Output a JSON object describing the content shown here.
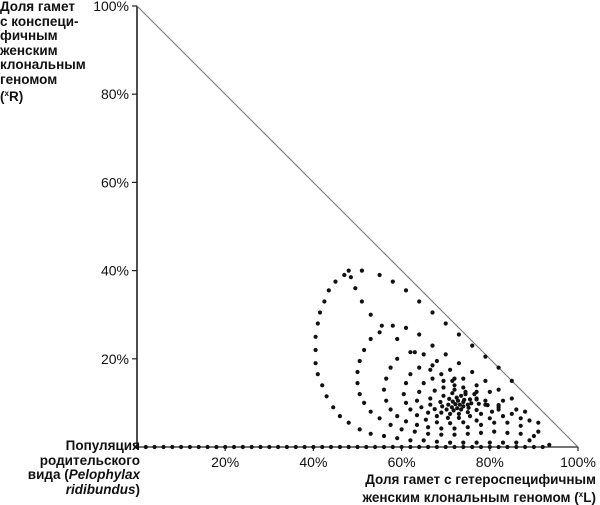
{
  "chart_data": {
    "type": "scatter",
    "y_title_lines": [
      "Доля гамет",
      "с конспеци-",
      "фичным",
      "женским",
      "клональным",
      "геномом"
    ],
    "y_title_symbol": {
      "open": "(",
      "sup": "x",
      "letter": "R",
      "close": ")"
    },
    "x_title_lines": [
      "Доля гамет с гетероспецифичным",
      "женским клональным геномом"
    ],
    "x_title_symbol": {
      "open": " (",
      "sup": "x",
      "letter": "L",
      "close": ")"
    },
    "origin_label": {
      "line1": "Популяция",
      "line2": "родительского",
      "line3_prefix": "вида (",
      "line3_italic": "Pelophylax",
      "line4_italic": "ridibundus",
      "line4_suffix": ")"
    },
    "x_ticks": [
      "20%",
      "40%",
      "60%",
      "80%",
      "100%"
    ],
    "x_tick_values": [
      20,
      40,
      60,
      80,
      100
    ],
    "y_ticks": [
      "20%",
      "40%",
      "60%",
      "80%",
      "100%"
    ],
    "y_tick_values": [
      20,
      40,
      60,
      80,
      100
    ],
    "xlim": [
      0,
      100
    ],
    "ylim": [
      0,
      100
    ],
    "boundary": "x + y = 100",
    "series": [
      {
        "points": [
          [
            0,
            0
          ],
          [
            2,
            0
          ],
          [
            4,
            0
          ],
          [
            6,
            0
          ],
          [
            8,
            0
          ],
          [
            10,
            0
          ],
          [
            12,
            0
          ],
          [
            14,
            0
          ],
          [
            16,
            0
          ],
          [
            18,
            0
          ],
          [
            20,
            0
          ],
          [
            22,
            0
          ],
          [
            24,
            0
          ],
          [
            26,
            0
          ],
          [
            28,
            0
          ],
          [
            30,
            0
          ],
          [
            32,
            0
          ],
          [
            34,
            0
          ],
          [
            36,
            0
          ],
          [
            38,
            0
          ],
          [
            40,
            0
          ],
          [
            42,
            0
          ],
          [
            44,
            0
          ],
          [
            46,
            0
          ],
          [
            48,
            0
          ],
          [
            50,
            0
          ],
          [
            52,
            0
          ],
          [
            54,
            0
          ],
          [
            56,
            0
          ],
          [
            58,
            0
          ],
          [
            60,
            0
          ],
          [
            62,
            0
          ],
          [
            64,
            0
          ],
          [
            66,
            0
          ],
          [
            68,
            0
          ],
          [
            70,
            0
          ],
          [
            72,
            0
          ],
          [
            74,
            0
          ],
          [
            76,
            0
          ],
          [
            78,
            0
          ],
          [
            80,
            0
          ],
          [
            82,
            0
          ],
          [
            84,
            0
          ],
          [
            86,
            0
          ],
          [
            88,
            0
          ],
          [
            90,
            0
          ],
          [
            92,
            0
          ],
          [
            93.5,
            0.5
          ],
          [
            91,
            3.5
          ],
          [
            87,
            6.5
          ],
          [
            82,
            9.5
          ],
          [
            77,
            12.5
          ],
          [
            72,
            15.5
          ],
          [
            67,
            18.5
          ],
          [
            63,
            21.5
          ],
          [
            59,
            24.5
          ],
          [
            55.5,
            27.5
          ],
          [
            53,
            30
          ],
          [
            51,
            33
          ],
          [
            49.5,
            36
          ],
          [
            48.5,
            38.5
          ],
          [
            48,
            40
          ],
          [
            51,
            40
          ],
          [
            55,
            39
          ],
          [
            58,
            37.5
          ],
          [
            61,
            35.5
          ],
          [
            64,
            33
          ],
          [
            67,
            30.5
          ],
          [
            70,
            28
          ],
          [
            73,
            25.5
          ],
          [
            76,
            23
          ],
          [
            79,
            20.5
          ],
          [
            82,
            18
          ],
          [
            85,
            15
          ],
          [
            47,
            39
          ],
          [
            45,
            37.5
          ],
          [
            43.5,
            35.5
          ],
          [
            42.5,
            33
          ],
          [
            41.5,
            30.5
          ],
          [
            41,
            28
          ],
          [
            40.5,
            25
          ],
          [
            40.5,
            22
          ],
          [
            40.5,
            19
          ],
          [
            41,
            16.5
          ],
          [
            42,
            14
          ],
          [
            43,
            11.5
          ],
          [
            44.5,
            9
          ],
          [
            46,
            7
          ],
          [
            48,
            5.5
          ],
          [
            50.5,
            4
          ],
          [
            53,
            3
          ],
          [
            56,
            2.5
          ],
          [
            59,
            2
          ],
          [
            62,
            1.5
          ],
          [
            65,
            1.5
          ],
          [
            68,
            1.2
          ],
          [
            71,
            1
          ],
          [
            74,
            1
          ],
          [
            77,
            1
          ],
          [
            80,
            1
          ],
          [
            83,
            1
          ],
          [
            86,
            1
          ],
          [
            89,
            1.5
          ],
          [
            55,
            26
          ],
          [
            58,
            27.5
          ],
          [
            61,
            27
          ],
          [
            64,
            25.5
          ],
          [
            67,
            23
          ],
          [
            70,
            21
          ],
          [
            73,
            19
          ],
          [
            76,
            17
          ],
          [
            79,
            15
          ],
          [
            82,
            13
          ],
          [
            85,
            11
          ],
          [
            88,
            8
          ],
          [
            91,
            5.5
          ],
          [
            53,
            24.5
          ],
          [
            51.5,
            22
          ],
          [
            50.5,
            19.5
          ],
          [
            50,
            17
          ],
          [
            50,
            14.5
          ],
          [
            50.5,
            12
          ],
          [
            51.5,
            10
          ],
          [
            53,
            8
          ],
          [
            55,
            6.5
          ],
          [
            57.5,
            5
          ],
          [
            60,
            4
          ],
          [
            63,
            3.5
          ],
          [
            66,
            3
          ],
          [
            69,
            2.8
          ],
          [
            72,
            2.8
          ],
          [
            75,
            3
          ],
          [
            78,
            3.2
          ],
          [
            81,
            3.5
          ],
          [
            84,
            3.2
          ],
          [
            87,
            3
          ],
          [
            90,
            2.5
          ],
          [
            59,
            20
          ],
          [
            62,
            21.5
          ],
          [
            65,
            21
          ],
          [
            68,
            19.5
          ],
          [
            71,
            17.5
          ],
          [
            74,
            15.5
          ],
          [
            77,
            14
          ],
          [
            80,
            12.5
          ],
          [
            83,
            10.5
          ],
          [
            86,
            8.5
          ],
          [
            89,
            6
          ],
          [
            57.5,
            18
          ],
          [
            56.5,
            15.5
          ],
          [
            56,
            13
          ],
          [
            56.5,
            10.5
          ],
          [
            57.5,
            8.5
          ],
          [
            59,
            7
          ],
          [
            61,
            5.8
          ],
          [
            63.5,
            5
          ],
          [
            66,
            4.5
          ],
          [
            69,
            4.2
          ],
          [
            72,
            4.2
          ],
          [
            75,
            4.5
          ],
          [
            78,
            5
          ],
          [
            81,
            5.5
          ],
          [
            84,
            5.5
          ],
          [
            87,
            4.8
          ],
          [
            62,
            16.5
          ],
          [
            64,
            18
          ],
          [
            66.5,
            17.5
          ],
          [
            69,
            16.5
          ],
          [
            71.5,
            15
          ],
          [
            74,
            13.5
          ],
          [
            76.5,
            12
          ],
          [
            79,
            10.5
          ],
          [
            82,
            9
          ],
          [
            85,
            7.5
          ],
          [
            61,
            14.5
          ],
          [
            60.5,
            12
          ],
          [
            61,
            10
          ],
          [
            62,
            8.5
          ],
          [
            63.5,
            7.2
          ],
          [
            65.5,
            6.2
          ],
          [
            68,
            5.6
          ],
          [
            71,
            5.4
          ],
          [
            74,
            5.6
          ],
          [
            77,
            6
          ],
          [
            80,
            6.5
          ],
          [
            83,
            7
          ],
          [
            65,
            14.5
          ],
          [
            67,
            15.5
          ],
          [
            69.5,
            15
          ],
          [
            72,
            14
          ],
          [
            74.5,
            12.5
          ],
          [
            77,
            11
          ],
          [
            79.5,
            9.5
          ],
          [
            82,
            8.5
          ],
          [
            64,
            12.5
          ],
          [
            63.5,
            10.5
          ],
          [
            64.5,
            9
          ],
          [
            66,
            7.8
          ],
          [
            68,
            7
          ],
          [
            70.5,
            6.6
          ],
          [
            73,
            6.6
          ],
          [
            75.5,
            7
          ],
          [
            78,
            7.5
          ],
          [
            80.5,
            8
          ],
          [
            67.5,
            12.8
          ],
          [
            69.5,
            13.5
          ],
          [
            72,
            13
          ],
          [
            74.5,
            12
          ],
          [
            77,
            10.8
          ],
          [
            79,
            9.6
          ],
          [
            66.5,
            11
          ],
          [
            66.5,
            9.6
          ],
          [
            67.5,
            8.6
          ],
          [
            69,
            7.8
          ],
          [
            71,
            7.5
          ],
          [
            73,
            7.5
          ],
          [
            75,
            7.9
          ],
          [
            77,
            8.4
          ],
          [
            69.5,
            11.6
          ],
          [
            71.5,
            12.2
          ],
          [
            73.5,
            11.6
          ],
          [
            75.5,
            10.8
          ],
          [
            77.5,
            9.8
          ],
          [
            68.8,
            10.2
          ],
          [
            69.2,
            9.2
          ],
          [
            70.2,
            8.5
          ],
          [
            71.8,
            8.3
          ],
          [
            73.5,
            8.5
          ],
          [
            75.2,
            8.9
          ],
          [
            70.8,
            10.9
          ],
          [
            72.5,
            11.2
          ],
          [
            74.2,
            10.7
          ],
          [
            75.8,
            9.9
          ],
          [
            70.6,
            9.6
          ],
          [
            71.4,
            9
          ],
          [
            72.6,
            8.8
          ],
          [
            74,
            9.2
          ],
          [
            75,
            9.6
          ],
          [
            71.6,
            10.3
          ],
          [
            72.8,
            10.5
          ],
          [
            74,
            10.2
          ],
          [
            72.2,
            9.7
          ],
          [
            73.2,
            9.6
          ]
        ]
      }
    ],
    "grid": false,
    "legend": "none"
  }
}
